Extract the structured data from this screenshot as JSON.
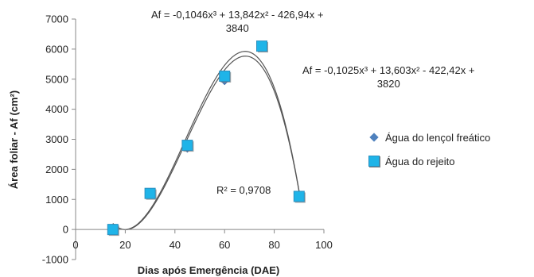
{
  "chart_data": {
    "type": "scatter",
    "title": "",
    "xlabel": "Dias após Emergência (DAE)",
    "ylabel": "Área foliar - Af (cm²)",
    "xlim": [
      0,
      100
    ],
    "ylim": [
      -1000,
      7000
    ],
    "x_ticks": [
      "0",
      "20",
      "40",
      "60",
      "80",
      "100"
    ],
    "y_ticks": [
      "-1000",
      "0",
      "1000",
      "2000",
      "3000",
      "4000",
      "5000",
      "6000",
      "7000"
    ],
    "series": [
      {
        "name": "Água do lençol freático",
        "marker": "diamond",
        "color": "#4f81bd",
        "x": [
          15,
          30,
          45,
          60,
          75,
          90
        ],
        "y": [
          0,
          1200,
          2700,
          4950,
          6050,
          1100
        ],
        "trendline": {
          "equation": "Af = -0,1025x³ + 13,603x² - 422,42x + 3820",
          "coefficients": [
            -0.1025,
            13.603,
            -422.42,
            3820
          ]
        }
      },
      {
        "name": "Água do rejeito",
        "marker": "square",
        "color": "#1fb4e8",
        "x": [
          15,
          30,
          45,
          60,
          75,
          90
        ],
        "y": [
          0,
          1200,
          2800,
          5100,
          6100,
          1100
        ],
        "trendline": {
          "equation": "Af = -0,1046x³ + 13,842x² - 426,94x + 3840",
          "coefficients": [
            -0.1046,
            13.842,
            -426.94,
            3840
          ]
        }
      }
    ],
    "annotations": {
      "eq_top_line1": "Af = -0,1046x³ + 13,842x² - 426,94x +",
      "eq_top_line2": "3840",
      "eq_right_line1": "Af = -0,1025x³ + 13,603x² - 422,42x +",
      "eq_right_line2": "3820",
      "r_squared": "R² = 0,9708"
    },
    "grid": false,
    "legend_position": "right"
  }
}
